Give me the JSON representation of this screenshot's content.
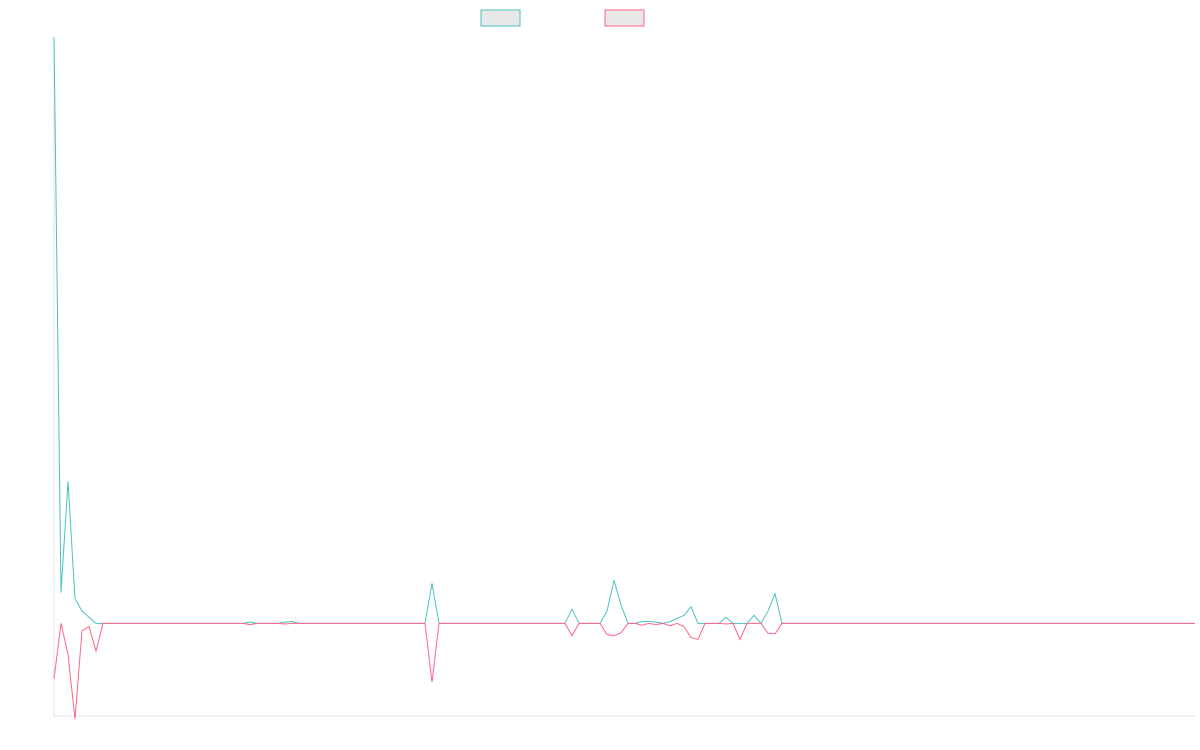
{
  "chart_data": {
    "type": "line",
    "title": "",
    "xlabel": "",
    "ylabel": "",
    "ylim": [
      -15,
      95
    ],
    "grid": false,
    "legend_position": "top-center",
    "x_count": 164,
    "baseline": 0,
    "series": [
      {
        "color": "#4bc0c0",
        "legend_fill": "#e8e8e8",
        "points": [
          [
            0,
            95
          ],
          [
            1,
            5
          ],
          [
            2,
            23
          ],
          [
            3,
            4
          ],
          [
            4,
            2
          ],
          [
            6,
            0
          ],
          [
            27,
            0
          ],
          [
            28,
            0.2
          ],
          [
            29,
            0
          ],
          [
            32,
            0
          ],
          [
            33,
            0.2
          ],
          [
            34,
            0.3
          ],
          [
            35,
            0
          ],
          [
            53,
            0
          ],
          [
            54,
            6.5
          ],
          [
            55,
            0
          ],
          [
            73,
            0
          ],
          [
            74,
            2.3
          ],
          [
            75,
            0
          ],
          [
            78,
            0
          ],
          [
            79,
            2
          ],
          [
            80,
            7
          ],
          [
            81,
            3
          ],
          [
            82,
            0
          ],
          [
            83,
            0
          ],
          [
            84,
            0.3
          ],
          [
            85,
            0.3
          ],
          [
            86,
            0.2
          ],
          [
            87,
            0
          ],
          [
            88,
            0.3
          ],
          [
            89,
            0.8
          ],
          [
            90,
            1.3
          ],
          [
            91,
            2.7
          ],
          [
            92,
            0
          ],
          [
            95,
            0
          ],
          [
            96,
            1
          ],
          [
            97,
            0
          ],
          [
            99,
            0
          ],
          [
            100,
            1.3
          ],
          [
            101,
            0
          ],
          [
            102,
            2
          ],
          [
            103,
            4.8
          ],
          [
            104,
            0
          ],
          [
            163,
            0
          ]
        ]
      },
      {
        "color": "#ff6384",
        "legend_fill": "#e8e8e8",
        "points": [
          [
            0,
            -9
          ],
          [
            1,
            0
          ],
          [
            2,
            -5
          ],
          [
            3,
            -15.5
          ],
          [
            4,
            -1.2
          ],
          [
            5,
            -0.5
          ],
          [
            6,
            -4.5
          ],
          [
            7,
            0
          ],
          [
            27,
            0
          ],
          [
            28,
            -0.2
          ],
          [
            29,
            0
          ],
          [
            32,
            0
          ],
          [
            33,
            -0.1
          ],
          [
            34,
            0
          ],
          [
            35,
            0
          ],
          [
            53,
            0
          ],
          [
            54,
            -9.5
          ],
          [
            55,
            0
          ],
          [
            73,
            0
          ],
          [
            74,
            -2
          ],
          [
            75,
            0
          ],
          [
            78,
            0
          ],
          [
            79,
            -1.8
          ],
          [
            80,
            -2
          ],
          [
            81,
            -1.5
          ],
          [
            82,
            0
          ],
          [
            83,
            0
          ],
          [
            84,
            -0.3
          ],
          [
            85,
            0
          ],
          [
            86,
            -0.2
          ],
          [
            87,
            0
          ],
          [
            88,
            -0.4
          ],
          [
            89,
            0
          ],
          [
            90,
            -0.5
          ],
          [
            91,
            -2.3
          ],
          [
            92,
            -2.6
          ],
          [
            93,
            0
          ],
          [
            95,
            0
          ],
          [
            96,
            -0.1
          ],
          [
            97,
            0
          ],
          [
            98,
            -2.6
          ],
          [
            99,
            0
          ],
          [
            101,
            0
          ],
          [
            102,
            -1.6
          ],
          [
            103,
            -1.7
          ],
          [
            104,
            0
          ],
          [
            163,
            0
          ]
        ]
      }
    ]
  }
}
